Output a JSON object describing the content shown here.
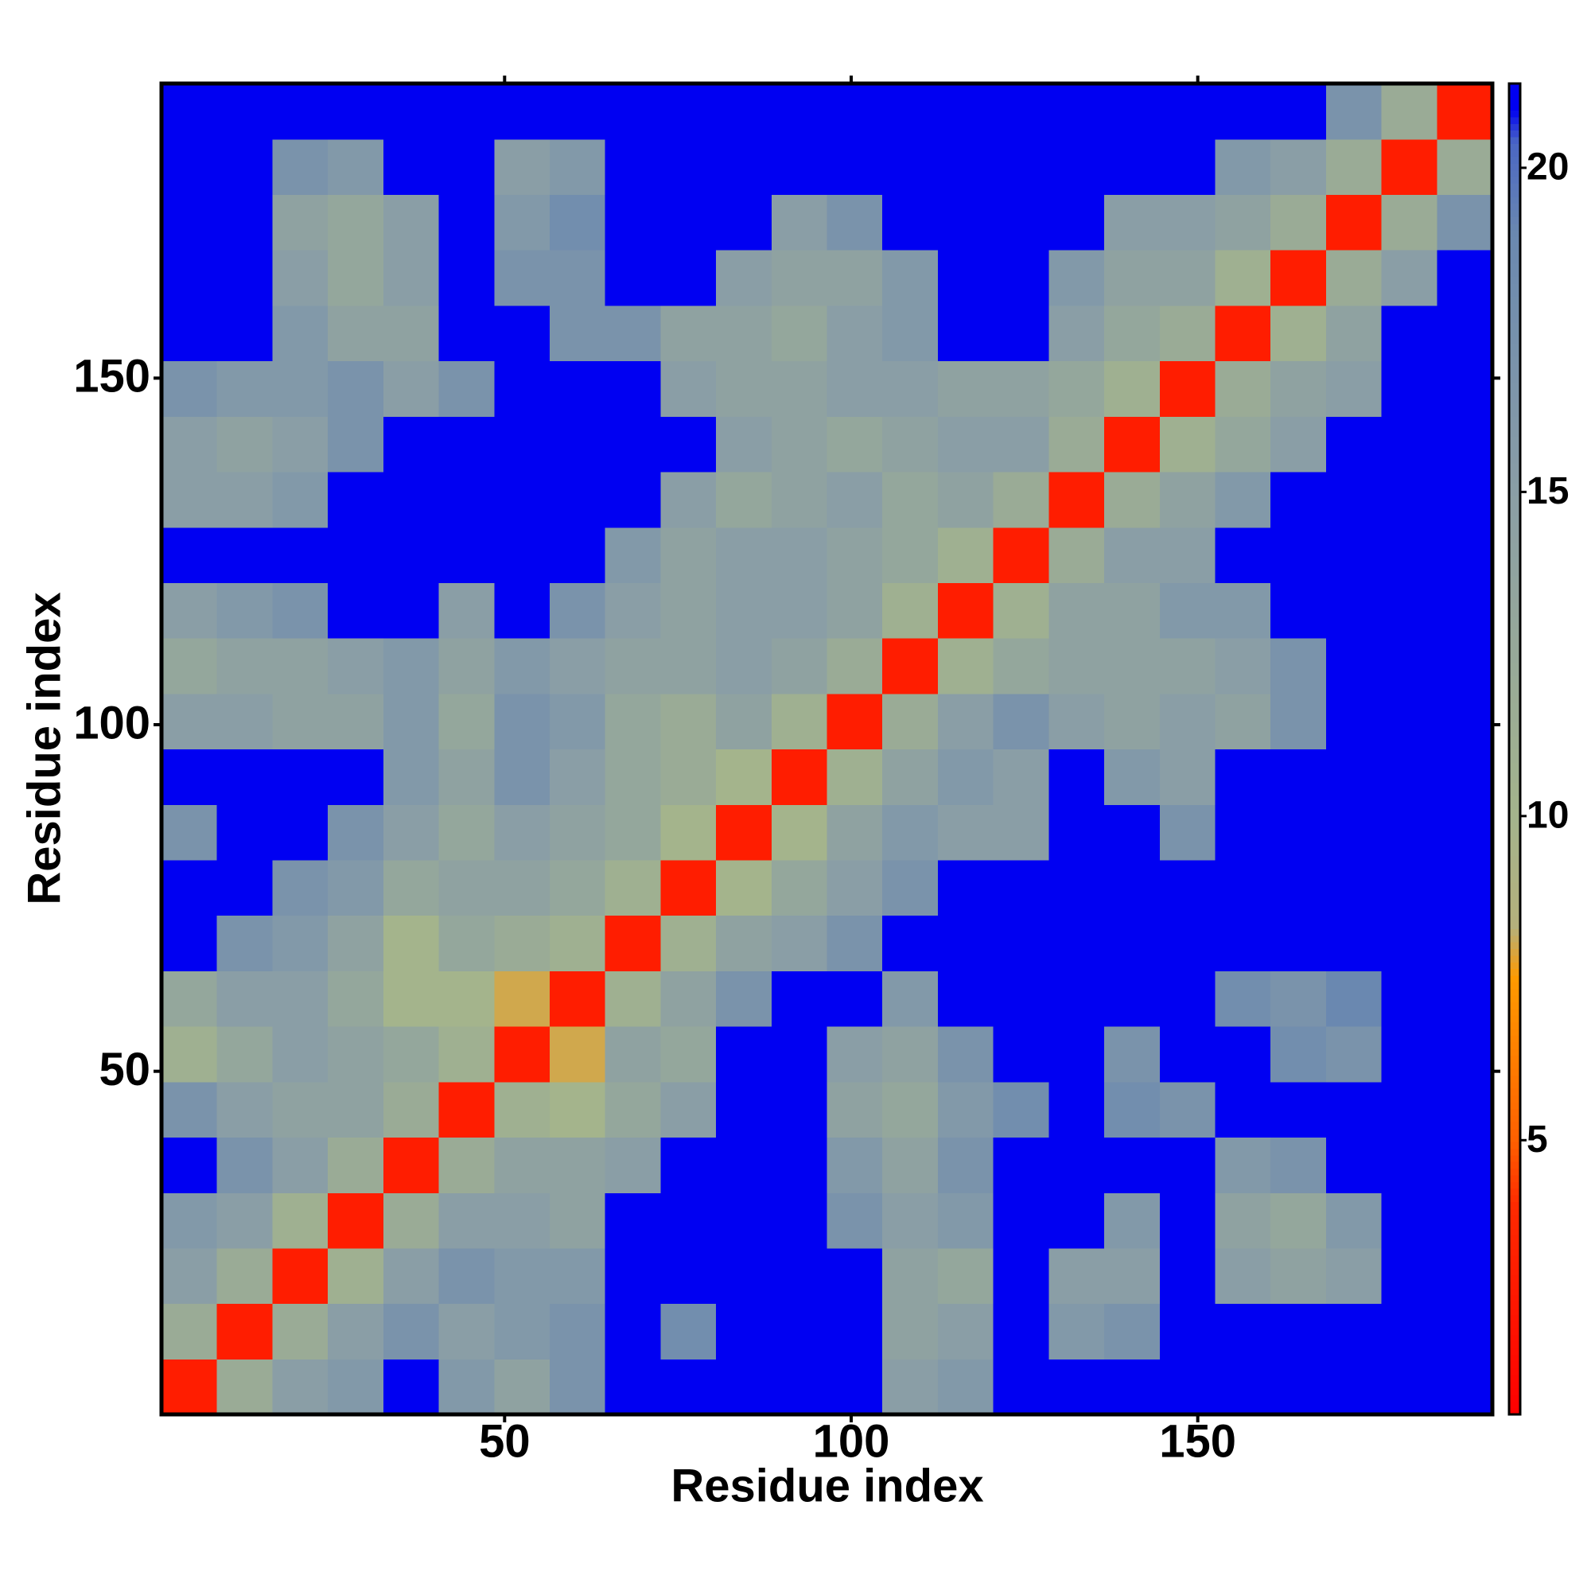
{
  "chart_data": {
    "type": "heatmap",
    "x_label": "Residue index",
    "y_label": "Residue index",
    "xlim": [
      0.5,
      192.5
    ],
    "ylim": [
      0.5,
      192.5
    ],
    "xticks": [
      50,
      100,
      150
    ],
    "yticks": [
      50,
      100,
      150
    ],
    "zlim": [
      0.77,
      21.3
    ],
    "colorbar_ticks": [
      5,
      10,
      15,
      20
    ],
    "colorscale": [
      [
        0.77,
        "#ff0000"
      ],
      [
        4,
        "#ff2a00"
      ],
      [
        5,
        "#ff6000"
      ],
      [
        7.5,
        "#ff9a00"
      ],
      [
        8.3,
        "#b4b07c"
      ],
      [
        10,
        "#a4b48c"
      ],
      [
        15,
        "#8a9ea6"
      ],
      [
        19,
        "#6a88b0"
      ],
      [
        20.4,
        "#4a66c4"
      ],
      [
        20.9,
        "#0000f2"
      ],
      [
        21.3,
        "#0000f2"
      ]
    ],
    "x": [
      4.5,
      12.5,
      20.5,
      28.5,
      36.5,
      44.5,
      52.5,
      60.5,
      68.5,
      76.5,
      84.5,
      92.5,
      100.5,
      108.5,
      116.5,
      124.5,
      132.5,
      140.5,
      148.5,
      156.5,
      164.5,
      172.5,
      180.5,
      188.5
    ],
    "y": [
      4.5,
      12.5,
      20.5,
      28.5,
      36.5,
      44.5,
      52.5,
      60.5,
      68.5,
      76.5,
      84.5,
      92.5,
      100.5,
      108.5,
      116.5,
      124.5,
      132.5,
      140.5,
      148.5,
      156.5,
      164.5,
      172.5,
      180.5,
      188.5
    ],
    "z": [
      [
        3,
        12,
        15,
        16,
        21,
        16,
        14,
        17,
        21,
        21,
        21,
        21,
        21,
        15,
        16,
        21,
        21,
        21,
        21,
        21,
        21,
        21,
        21,
        21
      ],
      [
        12,
        3,
        12,
        15,
        17,
        15,
        16,
        17,
        21,
        18,
        21,
        21,
        21,
        14,
        15,
        21,
        16,
        17,
        21,
        21,
        21,
        21,
        21,
        21
      ],
      [
        15,
        12,
        3,
        11,
        15,
        17,
        16,
        16,
        21,
        21,
        21,
        21,
        21,
        14,
        13,
        21,
        15,
        15,
        21,
        15,
        14,
        15,
        21,
        21
      ],
      [
        16,
        15,
        11,
        3,
        12,
        15,
        15,
        14,
        21,
        21,
        21,
        21,
        17,
        15,
        16,
        21,
        21,
        16,
        21,
        14,
        13,
        16,
        21,
        21
      ],
      [
        21,
        17,
        15,
        12,
        3,
        12,
        14,
        14,
        15,
        21,
        21,
        21,
        16,
        14,
        17,
        21,
        21,
        21,
        21,
        16,
        17,
        21,
        21,
        21
      ],
      [
        17,
        15,
        14,
        14,
        12,
        3,
        11,
        10,
        13,
        15,
        21,
        21,
        14,
        13,
        16,
        18,
        21,
        18,
        17,
        21,
        21,
        21,
        21,
        21
      ],
      [
        11,
        13,
        15,
        14,
        13,
        11,
        3,
        8,
        14,
        13,
        21,
        21,
        15,
        14,
        17,
        21,
        21,
        17,
        21,
        21,
        18,
        17,
        21,
        21
      ],
      [
        13,
        15,
        15,
        13,
        10,
        10,
        8,
        3,
        11,
        14,
        17,
        21,
        21,
        16,
        21,
        21,
        21,
        21,
        21,
        18,
        17,
        19,
        21,
        21
      ],
      [
        21,
        17,
        16,
        14,
        10,
        13,
        12,
        11,
        3,
        11,
        14,
        15,
        17,
        21,
        21,
        21,
        21,
        21,
        21,
        21,
        21,
        21,
        21,
        21
      ],
      [
        21,
        21,
        17,
        16,
        13,
        14,
        14,
        13,
        11,
        3,
        10,
        13,
        15,
        17,
        21,
        21,
        21,
        21,
        21,
        21,
        21,
        21,
        21,
        21
      ],
      [
        17,
        21,
        21,
        17,
        15,
        13,
        15,
        14,
        13,
        10,
        3,
        10,
        14,
        16,
        15,
        15,
        21,
        21,
        17,
        21,
        21,
        21,
        21,
        21
      ],
      [
        21,
        21,
        21,
        21,
        16,
        14,
        17,
        15,
        13,
        12,
        10,
        3,
        11,
        14,
        16,
        15,
        21,
        16,
        15,
        21,
        21,
        21,
        21,
        21
      ],
      [
        15,
        15,
        14,
        14,
        16,
        13,
        17,
        16,
        13,
        12,
        14,
        11,
        3,
        12,
        15,
        17,
        15,
        14,
        15,
        14,
        17,
        21,
        21,
        21
      ],
      [
        13,
        14,
        14,
        15,
        16,
        14,
        16,
        15,
        14,
        14,
        15,
        14,
        12,
        3,
        11,
        13,
        14,
        14,
        14,
        15,
        17,
        21,
        21,
        21
      ],
      [
        15,
        16,
        17,
        21,
        21,
        15,
        21,
        17,
        15,
        14,
        15,
        15,
        14,
        11,
        3,
        11,
        14,
        14,
        16,
        16,
        21,
        21,
        21,
        21
      ],
      [
        21,
        21,
        21,
        21,
        21,
        21,
        21,
        21,
        16,
        14,
        15,
        15,
        14,
        13,
        11,
        3,
        12,
        15,
        15,
        21,
        21,
        21,
        21,
        21
      ],
      [
        15,
        15,
        16,
        21,
        21,
        21,
        21,
        21,
        21,
        15,
        13,
        14,
        15,
        13,
        14,
        12,
        3,
        12,
        14,
        16,
        21,
        21,
        21,
        21
      ],
      [
        15,
        14,
        15,
        17,
        21,
        21,
        21,
        21,
        21,
        21,
        15,
        14,
        13,
        14,
        15,
        15,
        12,
        3,
        11,
        13,
        15,
        21,
        21,
        21
      ],
      [
        17,
        16,
        16,
        17,
        15,
        17,
        21,
        21,
        21,
        15,
        14,
        14,
        15,
        15,
        14,
        14,
        13,
        11,
        3,
        12,
        14,
        15,
        21,
        21
      ],
      [
        21,
        21,
        16,
        14,
        14,
        21,
        21,
        17,
        17,
        14,
        14,
        13,
        15,
        16,
        21,
        21,
        15,
        13,
        12,
        3,
        11,
        14,
        21,
        21
      ],
      [
        21,
        21,
        15,
        13,
        15,
        21,
        17,
        17,
        21,
        21,
        15,
        14,
        14,
        16,
        21,
        21,
        16,
        14,
        14,
        11,
        3,
        12,
        15,
        21
      ],
      [
        21,
        21,
        14,
        13,
        15,
        21,
        16,
        18,
        21,
        21,
        21,
        15,
        17,
        21,
        21,
        21,
        21,
        15,
        15,
        14,
        12,
        3,
        12,
        17
      ],
      [
        21,
        21,
        17,
        16,
        21,
        21,
        15,
        16,
        21,
        21,
        21,
        21,
        21,
        21,
        21,
        21,
        21,
        21,
        21,
        16,
        15,
        12,
        3,
        12
      ],
      [
        21,
        21,
        21,
        21,
        21,
        21,
        21,
        21,
        21,
        21,
        21,
        21,
        21,
        21,
        21,
        21,
        21,
        21,
        21,
        21,
        21,
        17,
        12,
        3
      ]
    ]
  }
}
